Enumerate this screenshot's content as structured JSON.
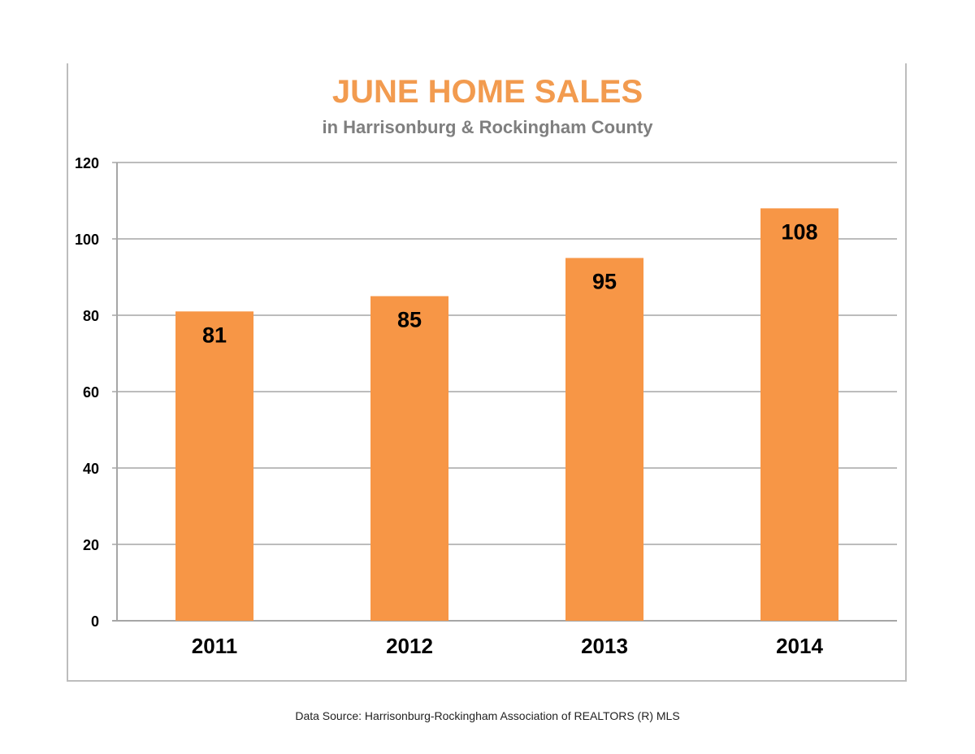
{
  "chart_data": {
    "type": "bar",
    "title": "JUNE HOME SALES",
    "subtitle": "in Harrisonburg & Rockingham County",
    "categories": [
      "2011",
      "2012",
      "2013",
      "2014"
    ],
    "values": [
      81,
      85,
      95,
      108
    ],
    "data_labels": [
      "81",
      "85",
      "95",
      "108"
    ],
    "ylim": [
      0,
      120
    ],
    "yticks": [
      0,
      20,
      40,
      60,
      80,
      100,
      120
    ],
    "grid": true,
    "legend": "none",
    "bar_color": "#f79646",
    "gridline_color": "#a6a6a6",
    "title_color": "#f29b4f",
    "subtitle_color": "#7f7f7f"
  },
  "footer": {
    "source": "Data Source: Harrisonburg-Rockingham Association of REALTORS (R) MLS"
  }
}
